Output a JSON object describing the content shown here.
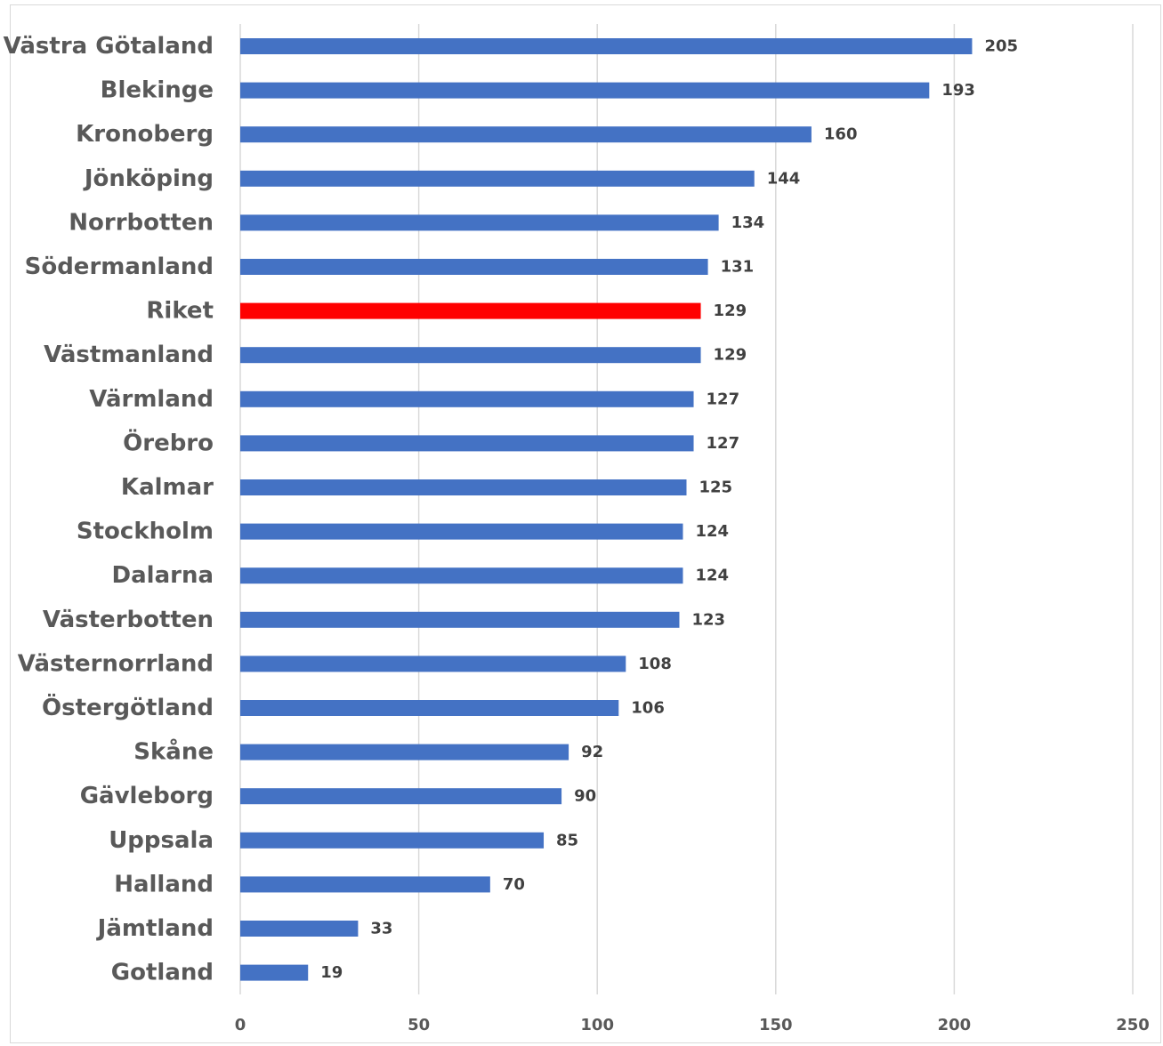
{
  "chart_data": {
    "type": "bar",
    "orientation": "horizontal",
    "categories": [
      "Västra Götaland",
      "Blekinge",
      "Kronoberg",
      "Jönköping",
      "Norrbotten",
      "Södermanland",
      "Riket",
      "Västmanland",
      "Värmland",
      "Örebro",
      "Kalmar",
      "Stockholm",
      "Dalarna",
      "Västerbotten",
      "Västernorrland",
      "Östergötland",
      "Skåne",
      "Gävleborg",
      "Uppsala",
      "Halland",
      "Jämtland",
      "Gotland"
    ],
    "values": [
      205,
      193,
      160,
      144,
      134,
      131,
      129,
      129,
      127,
      127,
      125,
      124,
      124,
      123,
      108,
      106,
      92,
      90,
      85,
      70,
      33,
      19
    ],
    "data_labels": [
      "205",
      "193",
      "160",
      "144",
      "134",
      "131",
      "129",
      "129",
      "127",
      "127",
      "125",
      "124",
      "124",
      "123",
      "108",
      "106",
      "92",
      "90",
      "85",
      "70",
      "33",
      "19"
    ],
    "xlim": [
      0,
      250
    ],
    "x_ticks": [
      0,
      50,
      100,
      150,
      200,
      250
    ],
    "x_tick_labels": [
      "0",
      "50",
      "100",
      "150",
      "200",
      "250"
    ],
    "grid": "vertical",
    "legend": "none",
    "title": "",
    "xlabel": "",
    "ylabel": "",
    "colors": {
      "bar": "#4472C4",
      "highlight": "#FF0000",
      "gridline": "#D9D9D9"
    },
    "highlight_category": "Riket"
  }
}
